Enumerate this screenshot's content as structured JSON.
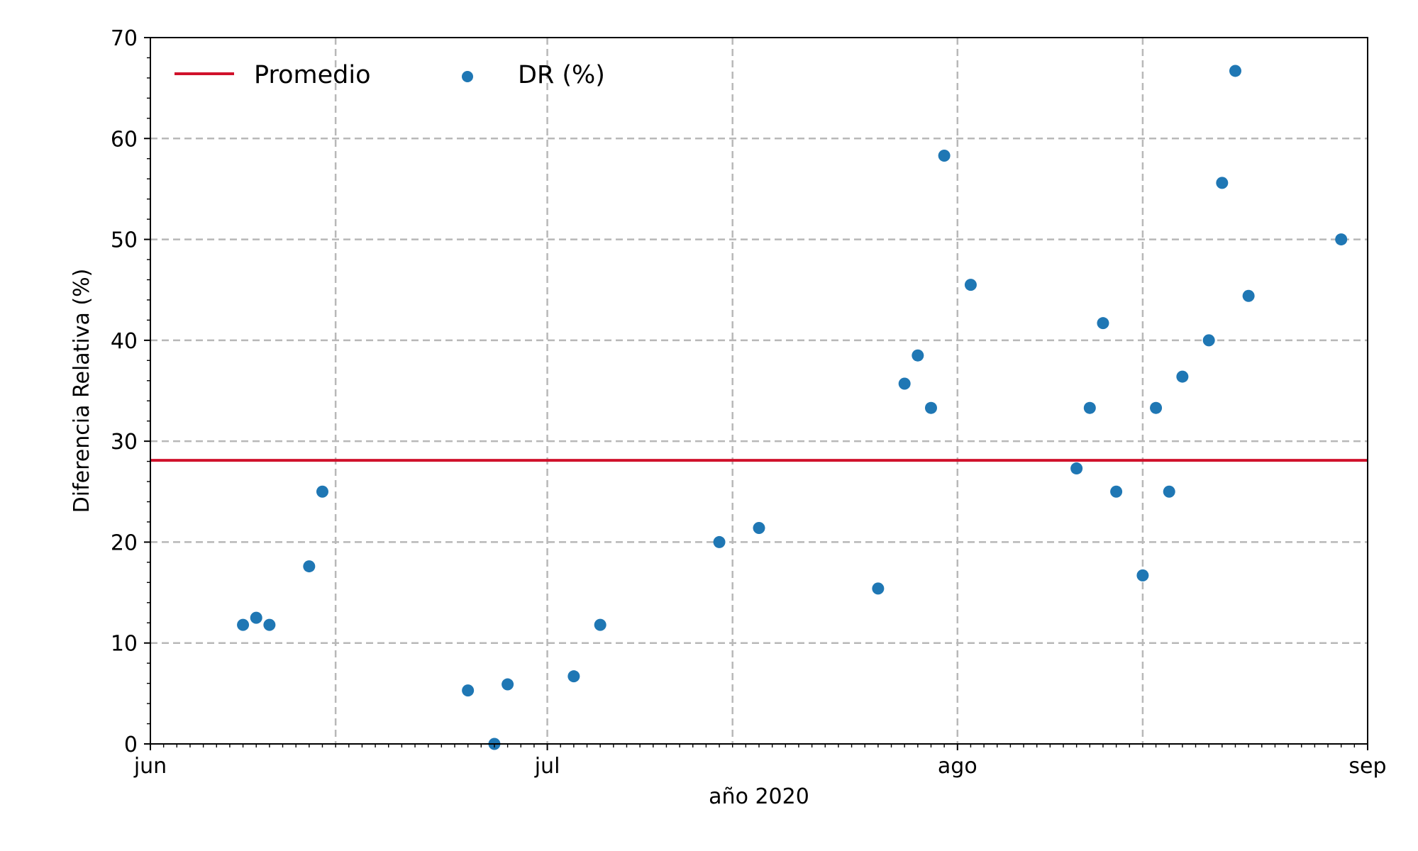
{
  "chart_data": {
    "type": "scatter",
    "xlabel": "año 2020",
    "ylabel": "Diferencia Relativa (%)",
    "x_axis": {
      "min": "2020-06-01",
      "max": "2020-09-01",
      "ticks": [
        {
          "date": "2020-06-01",
          "label": "jun"
        },
        {
          "date": "2020-07-01",
          "label": "jul"
        },
        {
          "date": "2020-08-01",
          "label": "ago"
        },
        {
          "date": "2020-09-01",
          "label": "sep"
        }
      ],
      "gridlines": [
        "2020-06-15",
        "2020-07-01",
        "2020-07-15",
        "2020-08-01",
        "2020-08-15"
      ]
    },
    "ylim": [
      0,
      70
    ],
    "yticks": [
      0,
      10,
      20,
      30,
      40,
      50,
      60,
      70
    ],
    "grid": true,
    "legend_position": "top-left",
    "series": [
      {
        "name": "DR (%)",
        "kind": "points",
        "color": "#1f77b4",
        "points": [
          {
            "x": "2020-06-08",
            "y": 11.8
          },
          {
            "x": "2020-06-09",
            "y": 12.5
          },
          {
            "x": "2020-06-10",
            "y": 11.8
          },
          {
            "x": "2020-06-13",
            "y": 17.6
          },
          {
            "x": "2020-06-14",
            "y": 25.0
          },
          {
            "x": "2020-06-25",
            "y": 5.3
          },
          {
            "x": "2020-06-27",
            "y": 0.0
          },
          {
            "x": "2020-06-28",
            "y": 5.9
          },
          {
            "x": "2020-07-03",
            "y": 6.7
          },
          {
            "x": "2020-07-05",
            "y": 11.8
          },
          {
            "x": "2020-07-14",
            "y": 20.0
          },
          {
            "x": "2020-07-17",
            "y": 21.4
          },
          {
            "x": "2020-07-26",
            "y": 15.4
          },
          {
            "x": "2020-07-28",
            "y": 35.7
          },
          {
            "x": "2020-07-29",
            "y": 38.5
          },
          {
            "x": "2020-07-30",
            "y": 33.3
          },
          {
            "x": "2020-07-31",
            "y": 58.3
          },
          {
            "x": "2020-08-02",
            "y": 45.5
          },
          {
            "x": "2020-08-10",
            "y": 27.3
          },
          {
            "x": "2020-08-11",
            "y": 33.3
          },
          {
            "x": "2020-08-12",
            "y": 41.7
          },
          {
            "x": "2020-08-13",
            "y": 25.0
          },
          {
            "x": "2020-08-15",
            "y": 16.7
          },
          {
            "x": "2020-08-16",
            "y": 33.3
          },
          {
            "x": "2020-08-17",
            "y": 25.0
          },
          {
            "x": "2020-08-18",
            "y": 36.4
          },
          {
            "x": "2020-08-20",
            "y": 40.0
          },
          {
            "x": "2020-08-21",
            "y": 55.6
          },
          {
            "x": "2020-08-22",
            "y": 66.7
          },
          {
            "x": "2020-08-23",
            "y": 44.4
          },
          {
            "x": "2020-08-30",
            "y": 50.0
          }
        ]
      },
      {
        "name": "Promedio",
        "kind": "hline",
        "color": "#d0112b",
        "y": 28.1
      }
    ]
  }
}
